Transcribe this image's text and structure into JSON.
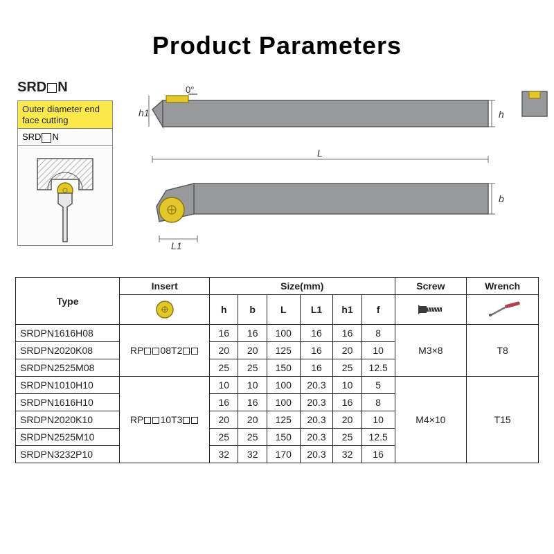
{
  "title": "Product Parameters",
  "series_label": {
    "pre": "SRD",
    "post": "N"
  },
  "cutting_box": {
    "header": "Outer diameter end face cutting",
    "label_pre": "SRD",
    "label_post": "N"
  },
  "diagram": {
    "angle_label": "0°",
    "dims": {
      "h1": "h1",
      "h": "h",
      "L": "L",
      "L1": "L1",
      "b": "b"
    },
    "colors": {
      "holder": "#98999b",
      "holder_edge": "#5a5b5d",
      "insert": "#e2c72a",
      "insert_edge": "#8a7510",
      "hatch": "#9a9a9a",
      "leader": "#444"
    }
  },
  "table": {
    "headers": {
      "type": "Type",
      "insert": "Insert",
      "size": "Size(mm)",
      "size_cols": [
        "h",
        "b",
        "L",
        "L1",
        "h1",
        "f"
      ],
      "screw": "Screw",
      "wrench": "Wrench"
    },
    "groups": [
      {
        "insert": {
          "pre": "RP",
          "mid": "08T2"
        },
        "screw": "M3×8",
        "wrench": "T8",
        "rows": [
          {
            "type": "SRDPN1616H08",
            "h": "16",
            "b": "16",
            "L": "100",
            "L1": "16",
            "h1": "16",
            "f": "8"
          },
          {
            "type": "SRDPN2020K08",
            "h": "20",
            "b": "20",
            "L": "125",
            "L1": "16",
            "h1": "20",
            "f": "10"
          },
          {
            "type": "SRDPN2525M08",
            "h": "25",
            "b": "25",
            "L": "150",
            "L1": "16",
            "h1": "25",
            "f": "12.5"
          }
        ]
      },
      {
        "insert": {
          "pre": "RP",
          "mid": "10T3"
        },
        "screw": "M4×10",
        "wrench": "T15",
        "rows": [
          {
            "type": "SRDPN1010H10",
            "h": "10",
            "b": "10",
            "L": "100",
            "L1": "20.3",
            "h1": "10",
            "f": "5"
          },
          {
            "type": "SRDPN1616H10",
            "h": "16",
            "b": "16",
            "L": "100",
            "L1": "20.3",
            "h1": "16",
            "f": "8"
          },
          {
            "type": "SRDPN2020K10",
            "h": "20",
            "b": "20",
            "L": "125",
            "L1": "20.3",
            "h1": "20",
            "f": "10"
          },
          {
            "type": "SRDPN2525M10",
            "h": "25",
            "b": "25",
            "L": "150",
            "L1": "20.3",
            "h1": "25",
            "f": "12.5"
          },
          {
            "type": "SRDPN3232P10",
            "h": "32",
            "b": "32",
            "L": "170",
            "L1": "20.3",
            "h1": "32",
            "f": "16"
          }
        ]
      }
    ],
    "icon_colors": {
      "insert_fill": "#e2c72a",
      "insert_stroke": "#8a7510",
      "screw": "#3a3a3a",
      "wrench_handle": "#b0414e",
      "wrench_shaft": "#777"
    }
  }
}
